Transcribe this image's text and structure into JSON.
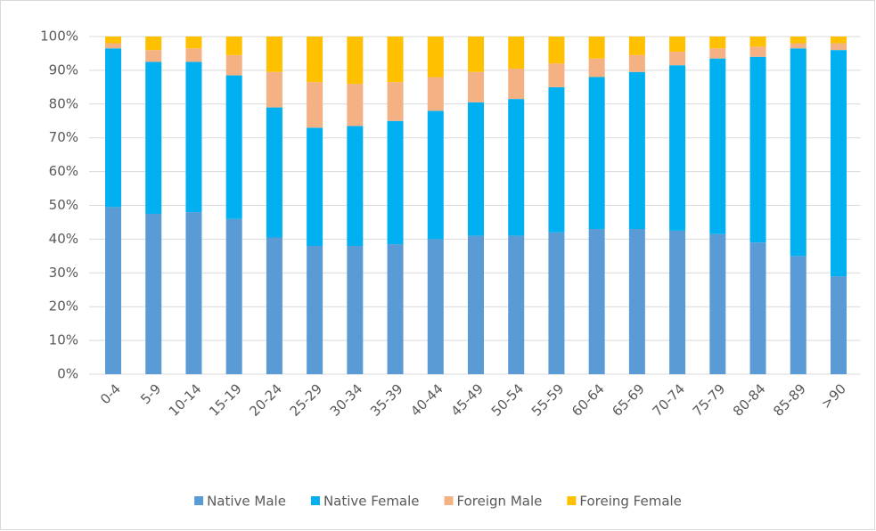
{
  "chart_data": {
    "type": "stacked-bar",
    "categories": [
      "0-4",
      "5-9",
      "10-14",
      "15-19",
      "20-24",
      "25-29",
      "30-34",
      "35-39",
      "40-44",
      "45-49",
      "50-54",
      "55-59",
      "60-64",
      "65-69",
      "70-74",
      "75-79",
      "80-84",
      "85-89",
      ">90"
    ],
    "series": [
      {
        "name": "Native Male",
        "color": "#5b9bd5",
        "values": [
          49.5,
          47.5,
          48,
          46,
          40.5,
          38,
          38,
          38.5,
          40,
          41,
          41,
          42,
          43,
          43,
          42.5,
          41.5,
          39,
          35,
          29
        ]
      },
      {
        "name": "Native Female",
        "color": "#00b0f0",
        "values": [
          47,
          45,
          44.5,
          42.5,
          38.5,
          35,
          35.5,
          36.5,
          38,
          39.5,
          40.5,
          43,
          45,
          46.5,
          49,
          52,
          55,
          61.5,
          67
        ]
      },
      {
        "name": "Foreign Male",
        "color": "#f4b183",
        "values": [
          1.5,
          3.5,
          4,
          6,
          10.5,
          13.5,
          12.5,
          11.5,
          10,
          9,
          9,
          7,
          5.5,
          5,
          4,
          3,
          3,
          1.5,
          2
        ]
      },
      {
        "name": "Foreing Female",
        "color": "#ffc000",
        "values": [
          2,
          4,
          3.5,
          5.5,
          10.5,
          13.5,
          14,
          13.5,
          12,
          10.5,
          9.5,
          8,
          6.5,
          5.5,
          4.5,
          3.5,
          3,
          2,
          2
        ]
      }
    ],
    "ylim": [
      0,
      100
    ],
    "yticks": [
      {
        "value": 0,
        "label": "0%"
      },
      {
        "value": 10,
        "label": "10%"
      },
      {
        "value": 20,
        "label": "20%"
      },
      {
        "value": 30,
        "label": "30%"
      },
      {
        "value": 40,
        "label": "40%"
      },
      {
        "value": 50,
        "label": "50%"
      },
      {
        "value": 60,
        "label": "60%"
      },
      {
        "value": 70,
        "label": "70%"
      },
      {
        "value": 80,
        "label": "80%"
      },
      {
        "value": 90,
        "label": "90%"
      },
      {
        "value": 100,
        "label": "100%"
      }
    ],
    "grid": true,
    "legend": "bottom"
  }
}
